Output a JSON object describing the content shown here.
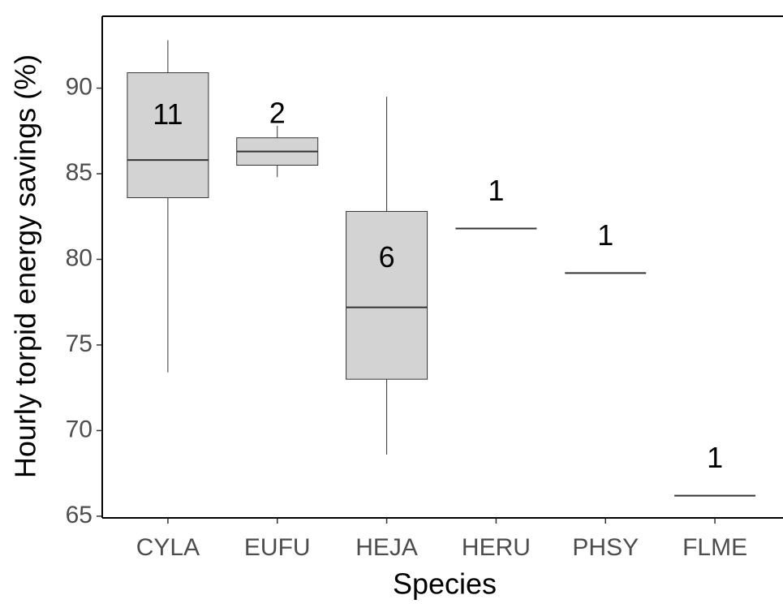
{
  "chart_data": {
    "type": "box",
    "x_label": "Species",
    "y_label": "Hourly torpid energy savings (%)",
    "categories": [
      "CYLA",
      "EUFU",
      "HEJA",
      "HERU",
      "PHSY",
      "FLME"
    ],
    "boxes": [
      {
        "whislo": 73.4,
        "q1": 83.6,
        "med": 85.8,
        "q3": 90.9,
        "whishi": 92.8
      },
      {
        "whislo": 84.8,
        "q1": 85.5,
        "med": 86.3,
        "q3": 87.1,
        "whishi": 87.8
      },
      {
        "whislo": 68.6,
        "q1": 73.0,
        "med": 77.2,
        "q3": 82.8,
        "whishi": 89.5
      },
      {
        "med": 81.8
      },
      {
        "med": 79.2
      },
      {
        "med": 66.2
      }
    ],
    "n": [
      11,
      2,
      6,
      1,
      1,
      1
    ],
    "color": "#d3d3d3",
    "ylim": [
      64.9,
      94.2
    ],
    "yticks": [
      65,
      70,
      75,
      80,
      85,
      90
    ]
  }
}
